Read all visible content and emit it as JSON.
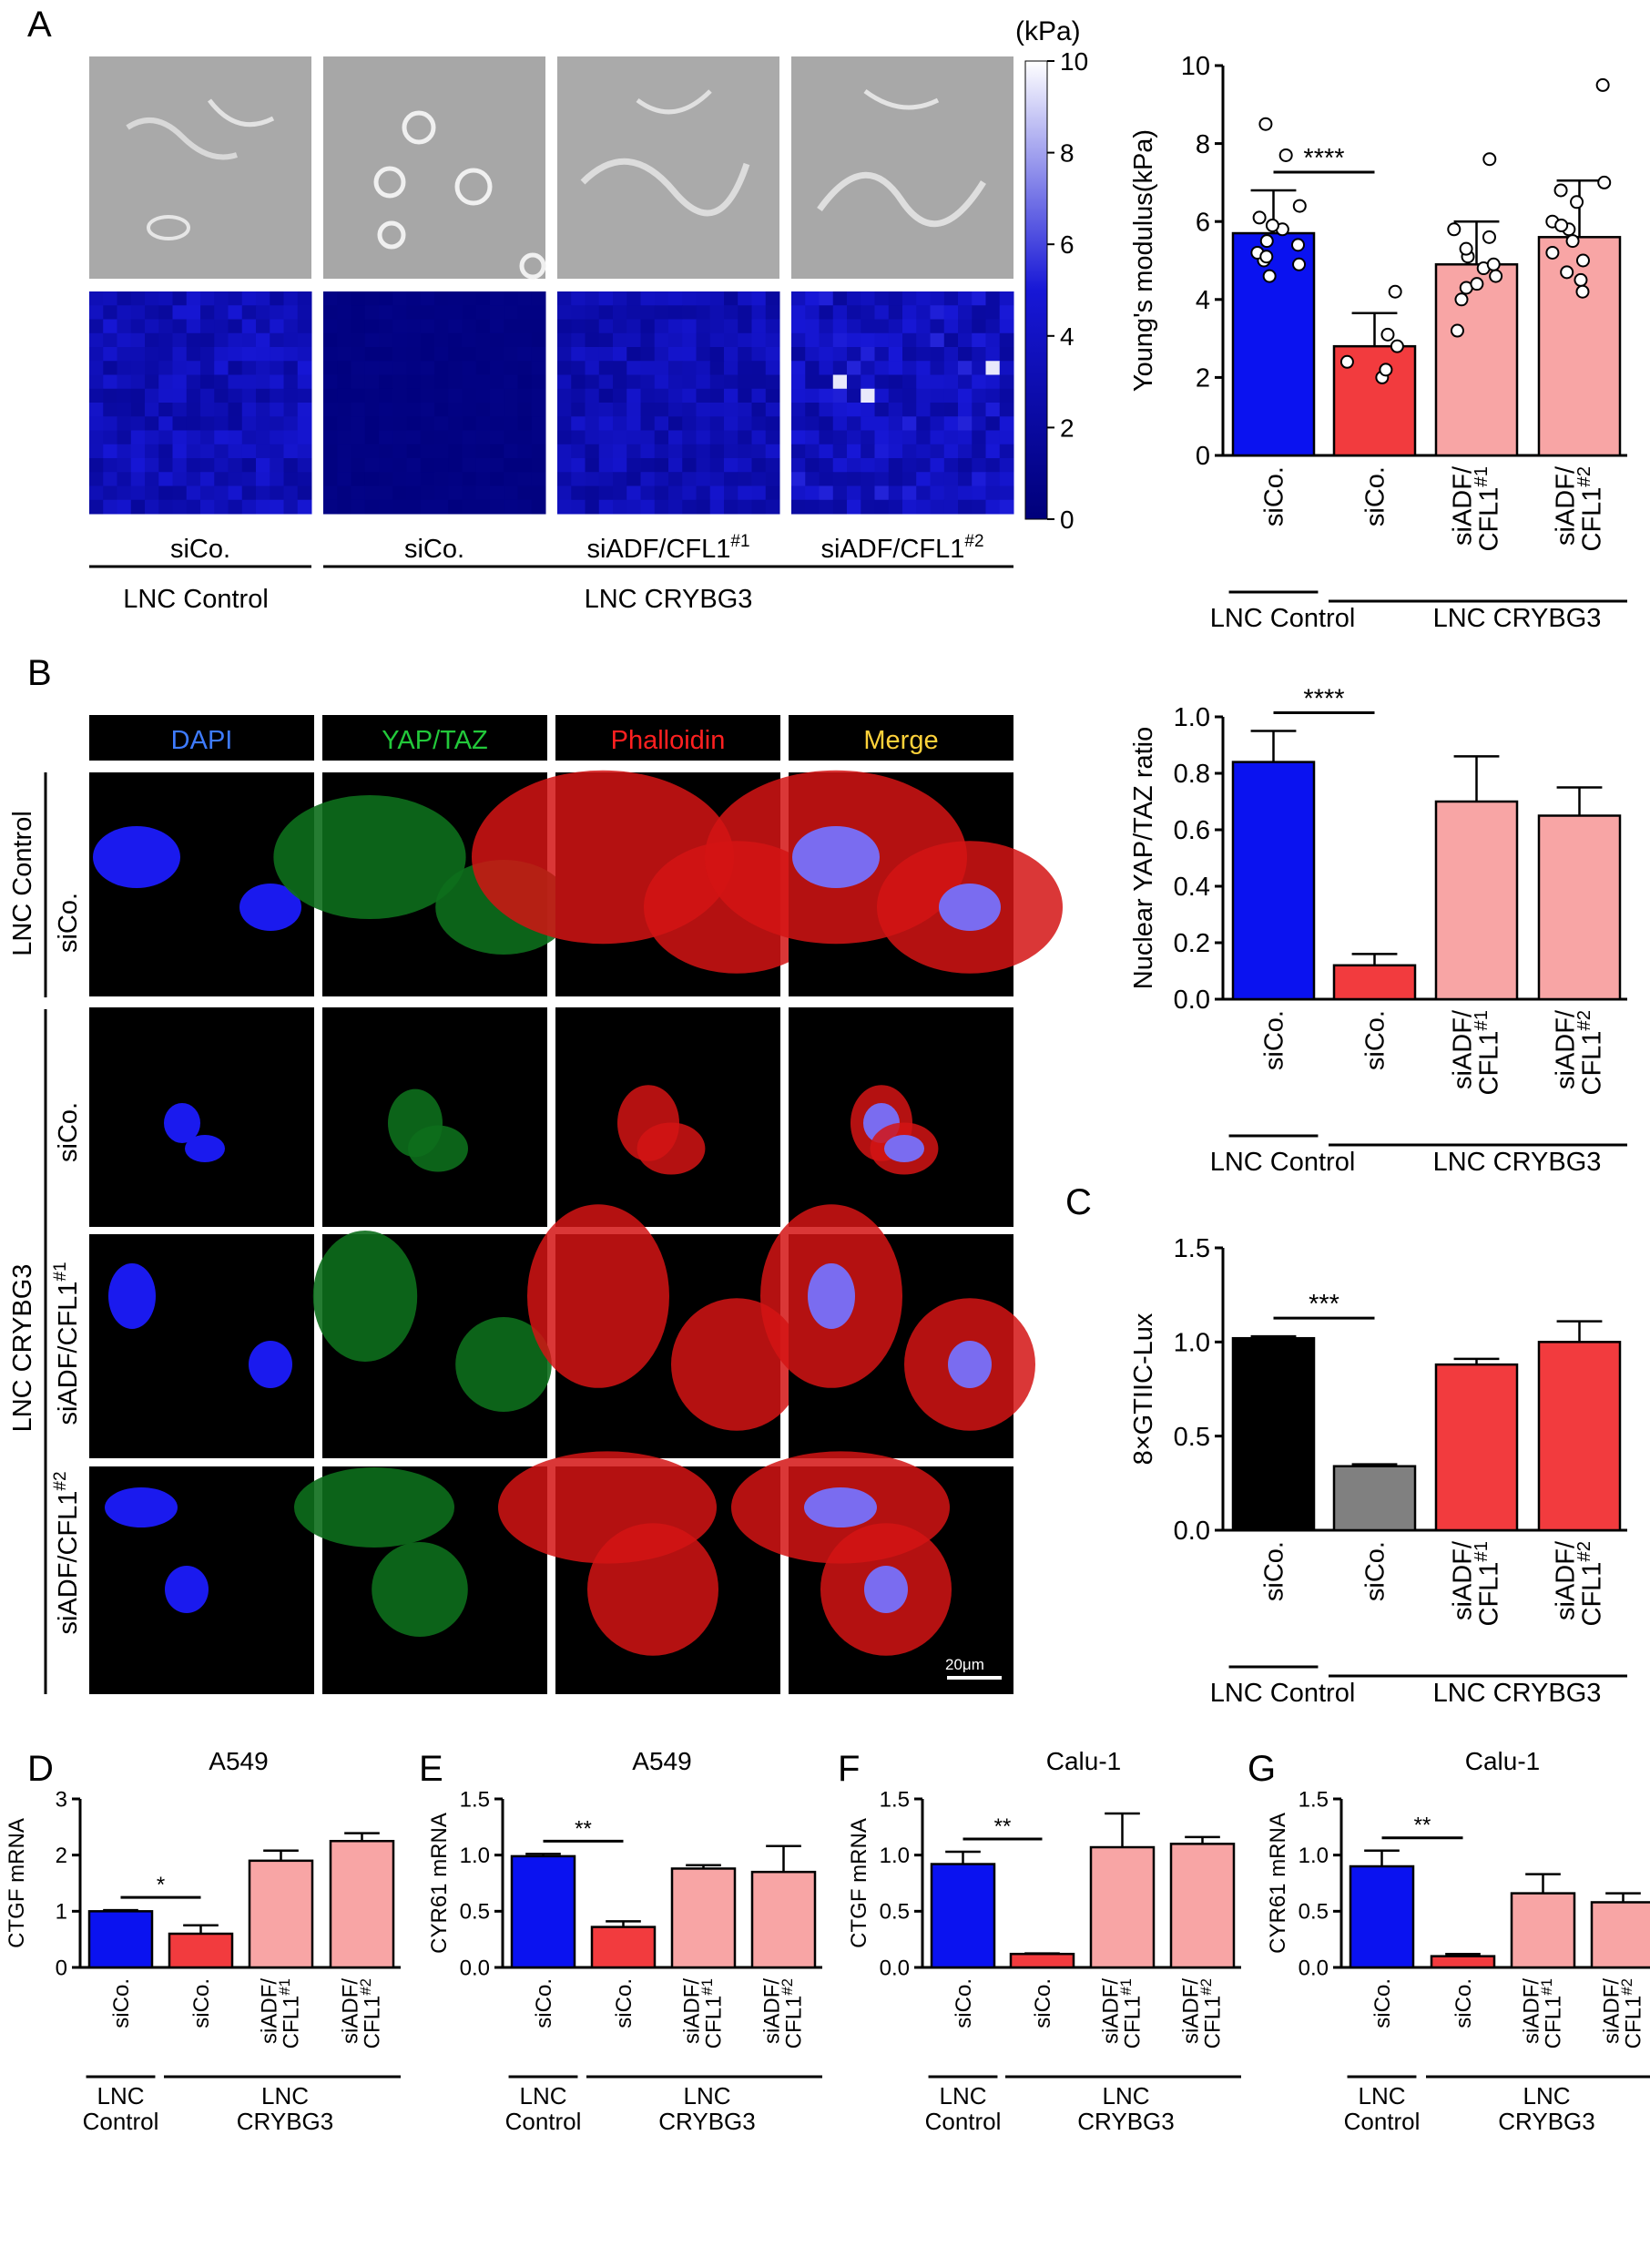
{
  "panel_labels": [
    "A",
    "B",
    "C",
    "D",
    "E",
    "F",
    "G"
  ],
  "colors": {
    "blue": "#0a12f0",
    "red": "#f23b3e",
    "pink": "#f8a5a5",
    "black": "#000000",
    "gray": "#808080",
    "heat_low": "#00007a",
    "heat_high": "#ffffff"
  },
  "panel_a": {
    "colorbar_unit": "(kPa)",
    "colorbar_ticks": [
      "0",
      "2",
      "4",
      "6",
      "8",
      "10"
    ],
    "columns": [
      "siCo.",
      "siCo.",
      "siADF/CFL1",
      "siADF/CFL1"
    ],
    "superscripts": [
      "",
      "",
      "#1",
      "#2"
    ],
    "group_control": "LNC Control",
    "group_crybg3": "LNC CRYBG3"
  },
  "panel_b": {
    "channels": [
      {
        "name": "DAPI",
        "color": "#3e7bff"
      },
      {
        "name": "YAP/TAZ",
        "color": "#22c93a"
      },
      {
        "name": "Phalloidin",
        "color": "#ff2020"
      },
      {
        "name": "Merge",
        "color": "#ffd23a"
      }
    ],
    "rows": [
      "siCo.",
      "siCo.",
      "siADF/CFL1",
      "siADF/CFL1"
    ],
    "row_superscripts": [
      "",
      "",
      "#1",
      "#2"
    ],
    "group_control": "LNC Control",
    "group_crybg3": "LNC CRYBG3",
    "scale_bar": "20μm"
  },
  "chart_data": [
    {
      "id": "A",
      "type": "bar",
      "categories": [
        "siCo.",
        "siCo.",
        "siADF/CFL1#1",
        "siADF/CFL1#2"
      ],
      "values": [
        5.7,
        2.8,
        4.9,
        5.6
      ],
      "errors": [
        1.1,
        0.85,
        1.1,
        1.45
      ],
      "points": [
        [
          5.0,
          5.2,
          5.4,
          5.5,
          5.8,
          6.1,
          6.4,
          4.6,
          5.1,
          5.9,
          4.9,
          7.7,
          8.5
        ],
        [
          2.0,
          2.2,
          2.4,
          2.8,
          3.1,
          4.2
        ],
        [
          3.2,
          4.0,
          4.3,
          4.6,
          4.8,
          4.9,
          5.1,
          5.3,
          5.6,
          5.8,
          7.6,
          4.4
        ],
        [
          4.5,
          4.7,
          5.0,
          5.2,
          5.5,
          5.8,
          6.0,
          6.5,
          6.8,
          7.0,
          9.5,
          4.2,
          5.9
        ]
      ],
      "ylabel": "Young's modulus(kPa)",
      "ylim": [
        0,
        10
      ],
      "yticks": [
        "0",
        "2",
        "4",
        "6",
        "8",
        "10"
      ],
      "significance": "****",
      "group_control": "LNC Control",
      "group_crybg3": "LNC CRYBG3"
    },
    {
      "id": "B",
      "type": "bar",
      "categories": [
        "siCo.",
        "siCo.",
        "siADF/CFL1#1",
        "siADF/CFL1#2"
      ],
      "values": [
        0.84,
        0.12,
        0.7,
        0.65
      ],
      "errors": [
        0.11,
        0.04,
        0.16,
        0.1
      ],
      "ylabel": "Nuclear YAP/TAZ ratio",
      "ylim": [
        0,
        1.0
      ],
      "yticks": [
        "0.0",
        "0.2",
        "0.4",
        "0.6",
        "0.8",
        "1.0"
      ],
      "significance": "****",
      "group_control": "LNC Control",
      "group_crybg3": "LNC CRYBG3"
    },
    {
      "id": "C",
      "type": "bar",
      "categories": [
        "siCo.",
        "siCo.",
        "siADF/CFL1#1",
        "siADF/CFL1#2"
      ],
      "values": [
        1.02,
        0.34,
        0.88,
        1.0
      ],
      "errors": [
        0.01,
        0.01,
        0.03,
        0.11
      ],
      "ylabel": "8×GTIIC-Lux",
      "ylim": [
        0,
        1.5
      ],
      "yticks": [
        "0.0",
        "0.5",
        "1.0",
        "1.5"
      ],
      "significance": "***",
      "group_control": "LNC Control",
      "group_crybg3": "LNC CRYBG3"
    },
    {
      "id": "D",
      "type": "bar",
      "title": "A549",
      "categories": [
        "siCo.",
        "siCo.",
        "siADF/CFL1#1",
        "siADF/CFL1#2"
      ],
      "values": [
        1.0,
        0.6,
        1.9,
        2.25
      ],
      "errors": [
        0.02,
        0.15,
        0.18,
        0.14
      ],
      "ylabel": "CTGF mRNA",
      "ylim": [
        0,
        3
      ],
      "yticks": [
        "0",
        "1",
        "2",
        "3"
      ],
      "significance": "*",
      "group_control": "LNC Control",
      "group_crybg3": "LNC CRYBG3"
    },
    {
      "id": "E",
      "type": "bar",
      "title": "A549",
      "categories": [
        "siCo.",
        "siCo.",
        "siADF/CFL1#1",
        "siADF/CFL1#2"
      ],
      "values": [
        0.99,
        0.36,
        0.88,
        0.85
      ],
      "errors": [
        0.02,
        0.05,
        0.03,
        0.23
      ],
      "ylabel": "CYR61 mRNA",
      "ylim": [
        0,
        1.5
      ],
      "yticks": [
        "0.0",
        "0.5",
        "1.0",
        "1.5"
      ],
      "significance": "**",
      "group_control": "LNC Control",
      "group_crybg3": "LNC CRYBG3"
    },
    {
      "id": "F",
      "type": "bar",
      "title": "Calu-1",
      "categories": [
        "siCo.",
        "siCo.",
        "siADF/CFL1#1",
        "siADF/CFL1#2"
      ],
      "values": [
        0.92,
        0.12,
        1.07,
        1.1
      ],
      "errors": [
        0.11,
        0.005,
        0.3,
        0.06
      ],
      "ylabel": "CTGF mRNA",
      "ylim": [
        0,
        1.5
      ],
      "yticks": [
        "0.0",
        "0.5",
        "1.0",
        "1.5"
      ],
      "significance": "**",
      "group_control": "LNC Control",
      "group_crybg3": "LNC CRYBG3"
    },
    {
      "id": "G",
      "type": "bar",
      "title": "Calu-1",
      "categories": [
        "siCo.",
        "siCo.",
        "siADF/CFL1#1",
        "siADF/CFL1#2"
      ],
      "values": [
        0.9,
        0.1,
        0.66,
        0.58
      ],
      "errors": [
        0.14,
        0.02,
        0.17,
        0.08
      ],
      "ylabel": "CYR61 mRNA",
      "ylim": [
        0,
        1.5
      ],
      "yticks": [
        "0.0",
        "0.5",
        "1.0",
        "1.5"
      ],
      "significance": "**",
      "group_control": "LNC Control",
      "group_crybg3": "LNC CRYBG3"
    }
  ]
}
